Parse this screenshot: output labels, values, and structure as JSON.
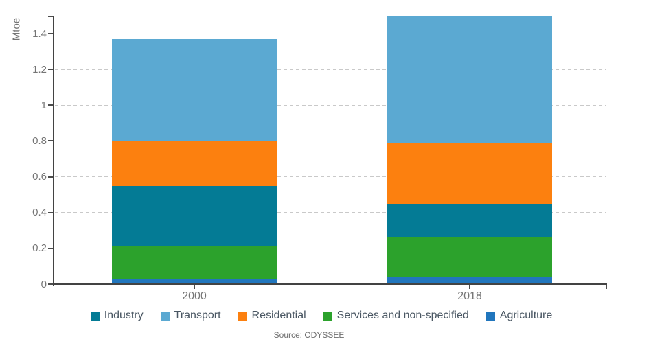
{
  "y_axis_label": "Mtoe",
  "source_text": "Source: ODYSSEE",
  "chart_data": {
    "type": "bar",
    "stacked": true,
    "title": "",
    "xlabel": "",
    "ylabel": "Mtoe",
    "categories": [
      "2000",
      "2018"
    ],
    "series": [
      {
        "name": "Industry",
        "color": "#047b95",
        "values": [
          0.34,
          0.19
        ]
      },
      {
        "name": "Transport",
        "color": "#5ba9d2",
        "values": [
          0.57,
          0.71
        ]
      },
      {
        "name": "Residential",
        "color": "#fc800f",
        "values": [
          0.25,
          0.34
        ]
      },
      {
        "name": "Services and non-specified",
        "color": "#2ca22c",
        "values": [
          0.18,
          0.22
        ]
      },
      {
        "name": "Agriculture",
        "color": "#2176bd",
        "values": [
          0.03,
          0.04
        ]
      }
    ],
    "stack_order": [
      "Agriculture",
      "Services and non-specified",
      "Industry",
      "Residential",
      "Transport"
    ],
    "stack_totals": [
      1.37,
      1.5
    ],
    "ylim": [
      0,
      1.5
    ],
    "yticks": [
      0,
      0.2,
      0.4,
      0.6,
      0.8,
      1,
      1.2,
      1.4
    ],
    "ytick_labels": [
      "0",
      "0.2",
      "0.4",
      "0.6",
      "0.8",
      "1",
      "1.2",
      "1.4"
    ],
    "grid": "horizontal-dashed",
    "legend_position": "bottom",
    "source": "Source: ODYSSEE"
  }
}
